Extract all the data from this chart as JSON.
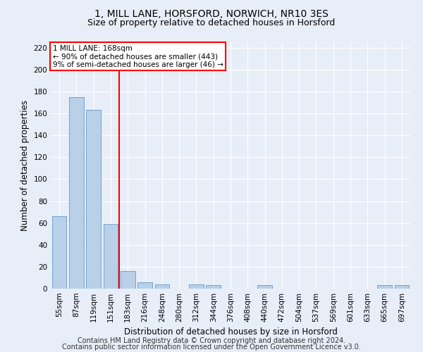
{
  "title": "1, MILL LANE, HORSFORD, NORWICH, NR10 3ES",
  "subtitle": "Size of property relative to detached houses in Horsford",
  "xlabel": "Distribution of detached houses by size in Horsford",
  "ylabel": "Number of detached properties",
  "categories": [
    "55sqm",
    "87sqm",
    "119sqm",
    "151sqm",
    "183sqm",
    "216sqm",
    "248sqm",
    "280sqm",
    "312sqm",
    "344sqm",
    "376sqm",
    "408sqm",
    "440sqm",
    "472sqm",
    "504sqm",
    "537sqm",
    "569sqm",
    "601sqm",
    "633sqm",
    "665sqm",
    "697sqm"
  ],
  "values": [
    66,
    175,
    163,
    59,
    16,
    6,
    4,
    0,
    4,
    3,
    0,
    0,
    3,
    0,
    0,
    0,
    0,
    0,
    0,
    3,
    3
  ],
  "bar_color": "#b8d0e8",
  "bar_edge_color": "#6699cc",
  "vline_x": 3.5,
  "vline_color": "red",
  "annotation_title": "1 MILL LANE: 168sqm",
  "annotation_line1": "← 90% of detached houses are smaller (443)",
  "annotation_line2": "9% of semi-detached houses are larger (46) →",
  "annotation_box_color": "white",
  "annotation_box_edge": "red",
  "ylim": [
    0,
    225
  ],
  "yticks": [
    0,
    20,
    40,
    60,
    80,
    100,
    120,
    140,
    160,
    180,
    200,
    220
  ],
  "footer1": "Contains HM Land Registry data © Crown copyright and database right 2024.",
  "footer2": "Contains public sector information licensed under the Open Government Licence v3.0.",
  "background_color": "#e8eef8",
  "plot_background": "#e8eef8",
  "title_fontsize": 10,
  "subtitle_fontsize": 9,
  "axis_label_fontsize": 8.5,
  "tick_fontsize": 7.5,
  "footer_fontsize": 7,
  "ann_fontsize": 7.5
}
